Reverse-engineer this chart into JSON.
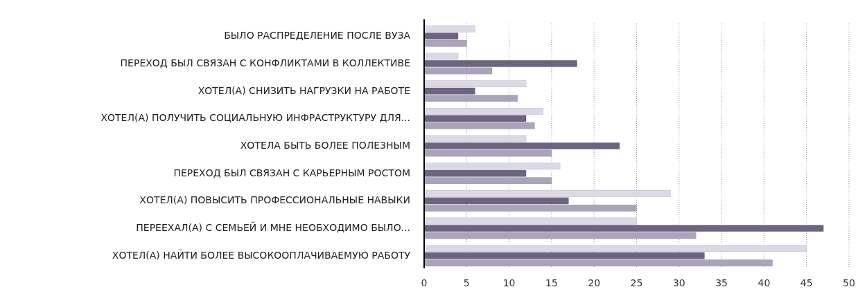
{
  "chart_data": {
    "type": "bar",
    "orientation": "horizontal",
    "categories": [
      "БЫЛО РАСПРЕДЕЛЕНИЕ ПОСЛЕ  ВУЗА",
      "ПЕРЕХОД БЫЛ СВЯЗАН С КОНФЛИКТАМИ В КОЛЛЕКТИВЕ",
      "ХОТЕЛ(А) СНИЗИТЬ НАГРУЗКИ НА РАБОТЕ",
      "ХОТЕЛ(А) ПОЛУЧИТЬ СОЦИАЛЬНУЮ ИНФРАСТРУКТУРУ ДЛЯ...",
      "ХОТЕЛА БЫТЬ БОЛЕЕ ПОЛЕЗНЫМ",
      "ПЕРЕХОД БЫЛ СВЯЗАН С КАРЬЕРНЫМ РОСТОМ",
      "ХОТЕЛ(А) ПОВЫСИТЬ ПРОФЕССИОНАЛЬНЫЕ НАВЫКИ",
      "ПЕРЕЕХАЛ(А) С СЕМЬЕЙ И МНЕ НЕОБХОДИМО БЫЛО...",
      "ХОТЕЛ(А) НАЙТИ БОЛЕЕ ВЫСОКООПЛАЧИВАЕМУЮ РАБОТУ"
    ],
    "series": [
      {
        "color": "#dcd9e6",
        "values": [
          6,
          4,
          12,
          14,
          12,
          16,
          29,
          25,
          45
        ]
      },
      {
        "color": "#6c6480",
        "values": [
          4,
          18,
          6,
          12,
          23,
          12,
          17,
          47,
          33
        ]
      },
      {
        "color": "#aaa4ba",
        "values": [
          5,
          8,
          11,
          13,
          15,
          15,
          25,
          32,
          41
        ]
      }
    ],
    "xlim": [
      0,
      50
    ],
    "xticks": [
      0,
      5,
      10,
      15,
      20,
      25,
      30,
      35,
      40,
      45,
      50
    ],
    "grid": "x"
  }
}
